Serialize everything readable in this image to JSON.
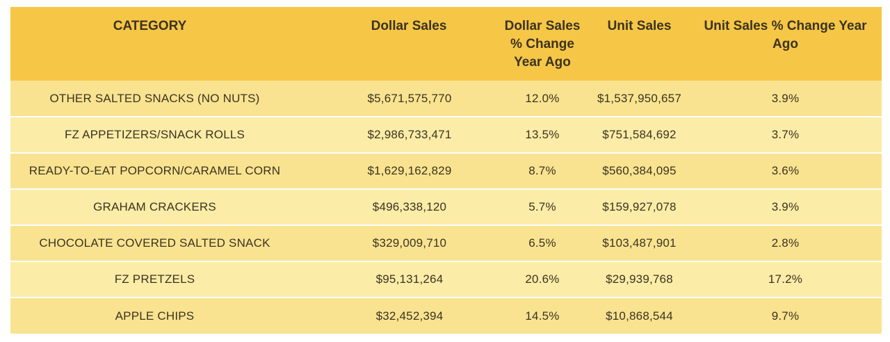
{
  "table": {
    "headers": [
      "CATEGORY",
      "Dollar Sales",
      "Dollar Sales % Change Year Ago",
      "Unit Sales",
      "Unit Sales % Change Year Ago"
    ],
    "rows": [
      [
        "OTHER SALTED SNACKS (NO NUTS)",
        "$5,671,575,770",
        "12.0%",
        "$1,537,950,657",
        "3.9%"
      ],
      [
        "FZ APPETIZERS/SNACK ROLLS",
        "$2,986,733,471",
        "13.5%",
        "$751,584,692",
        "3.7%"
      ],
      [
        "READY-TO-EAT POPCORN/CARAMEL CORN",
        "$1,629,162,829",
        "8.7%",
        "$560,384,095",
        "3.6%"
      ],
      [
        "GRAHAM CRACKERS",
        "$496,338,120",
        "5.7%",
        "$159,927,078",
        "3.9%"
      ],
      [
        "CHOCOLATE COVERED SALTED SNACK",
        "$329,009,710",
        "6.5%",
        "$103,487,901",
        "2.8%"
      ],
      [
        "FZ PRETZELS",
        "$95,131,264",
        "20.6%",
        "$29,939,768",
        "17.2%"
      ],
      [
        "APPLE CHIPS",
        "$32,452,394",
        "14.5%",
        "$10,868,544",
        "9.7%"
      ]
    ]
  },
  "colors": {
    "header_bg": "#f6c646",
    "row_odd_bg": "#f9e390",
    "row_even_bg": "#fbeca7",
    "text": "#3b3320"
  }
}
